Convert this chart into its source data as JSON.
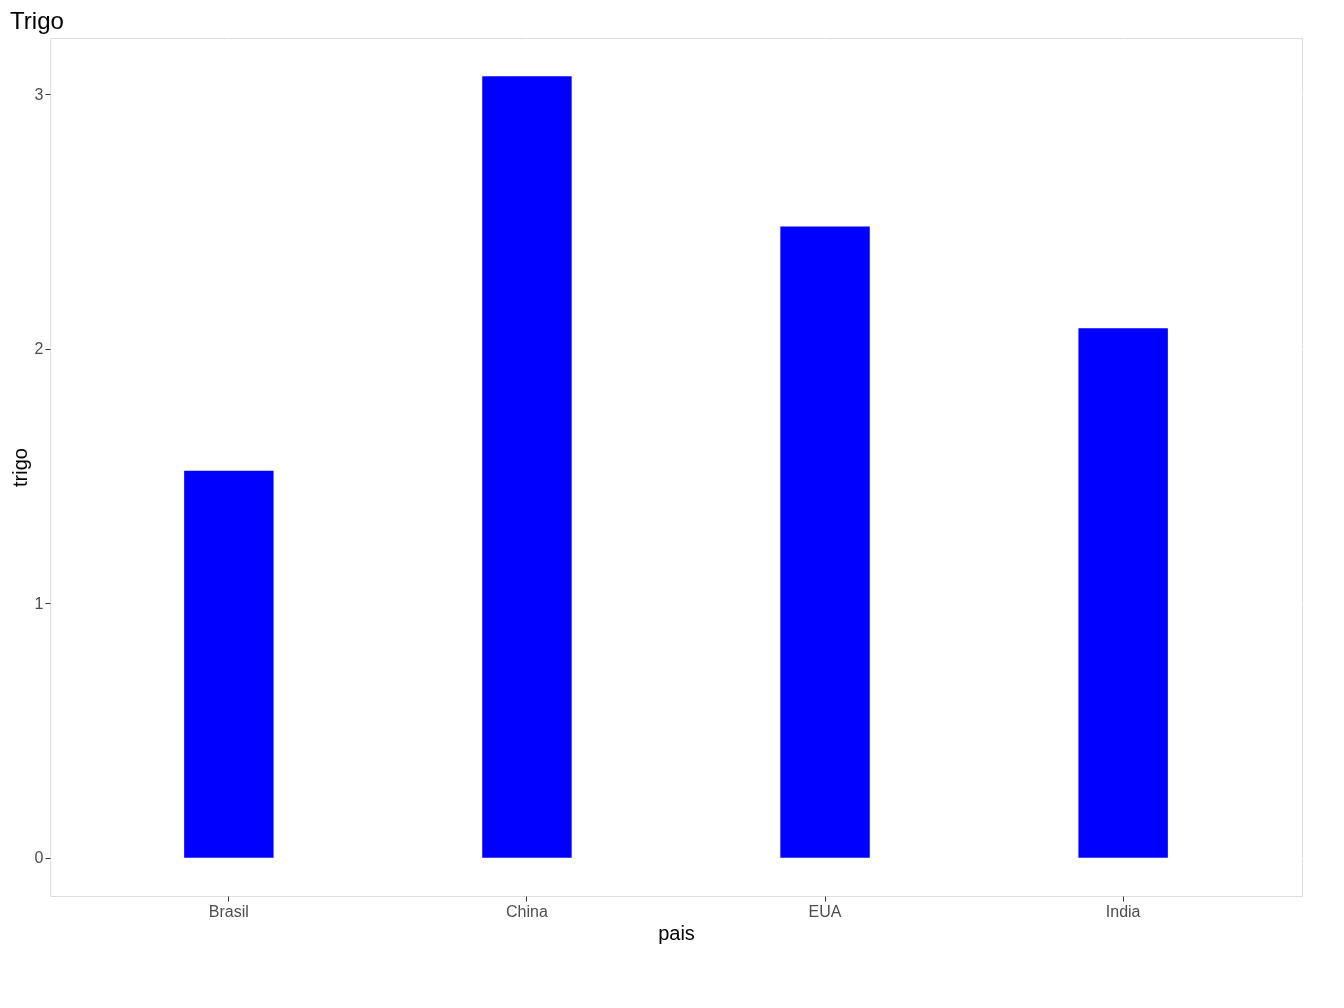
{
  "chart_data": {
    "type": "bar",
    "title": "Trigo",
    "xlabel": "pais",
    "ylabel": "trigo",
    "categories": [
      "Brasil",
      "China",
      "EUA",
      "India"
    ],
    "values": [
      1.52,
      3.07,
      2.48,
      2.08
    ],
    "color": "#0000ff",
    "ylim": [
      -0.15,
      3.22
    ],
    "yticks": [
      0,
      1,
      2,
      3
    ],
    "grid": true
  }
}
